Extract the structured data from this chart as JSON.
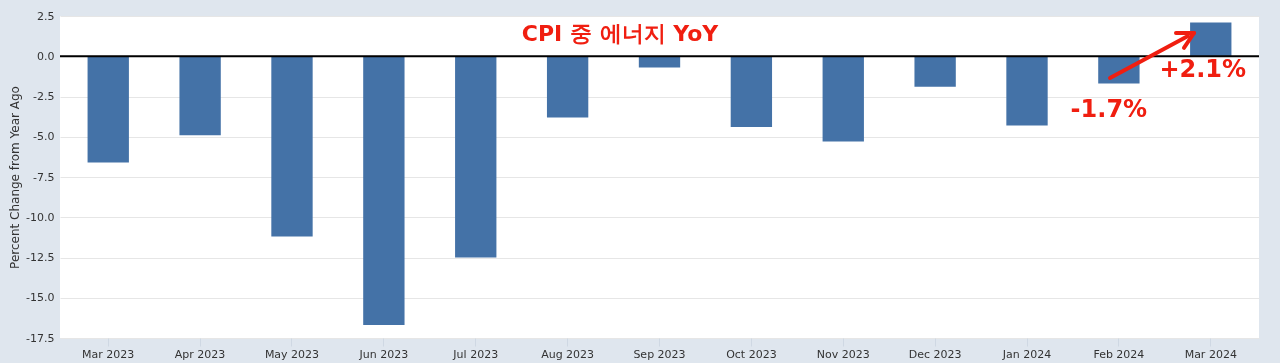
{
  "chart_data": {
    "type": "bar",
    "title": "CPI 중 에너지 YoY",
    "ylabel": "Percent Change from Year Ago",
    "categories": [
      "Mar 2023",
      "Apr 2023",
      "May 2023",
      "Jun 2023",
      "Jul 2023",
      "Aug 2023",
      "Sep 2023",
      "Oct 2023",
      "Nov 2023",
      "Dec 2023",
      "Jan 2024",
      "Feb 2024",
      "Mar 2024"
    ],
    "values": [
      -6.6,
      -4.9,
      -11.2,
      -16.7,
      -12.5,
      -3.8,
      -0.7,
      -4.4,
      -5.3,
      -1.9,
      -4.3,
      -1.7,
      2.1
    ],
    "color": "#4472a7",
    "ylim": [
      -17.5,
      2.5
    ],
    "yticks": [
      2.5,
      {
        "value": 0,
        "label": "0.0"
      },
      -2.5,
      {
        "value": -5,
        "label": "-5.0"
      },
      -7.5,
      {
        "value": -10,
        "label": "-10.0"
      },
      -12.5,
      {
        "value": -15,
        "label": "-15.0"
      },
      -17.5
    ],
    "grid": "y",
    "ref_lines": [
      {
        "axis": "y",
        "value": 0,
        "color": "#000000"
      }
    ],
    "annotations": [
      {
        "text": "-1.7%",
        "x": "Feb 2024",
        "y": -1.7
      },
      {
        "text": "+2.1%",
        "x": "Mar 2024",
        "y": 2.1
      }
    ]
  }
}
